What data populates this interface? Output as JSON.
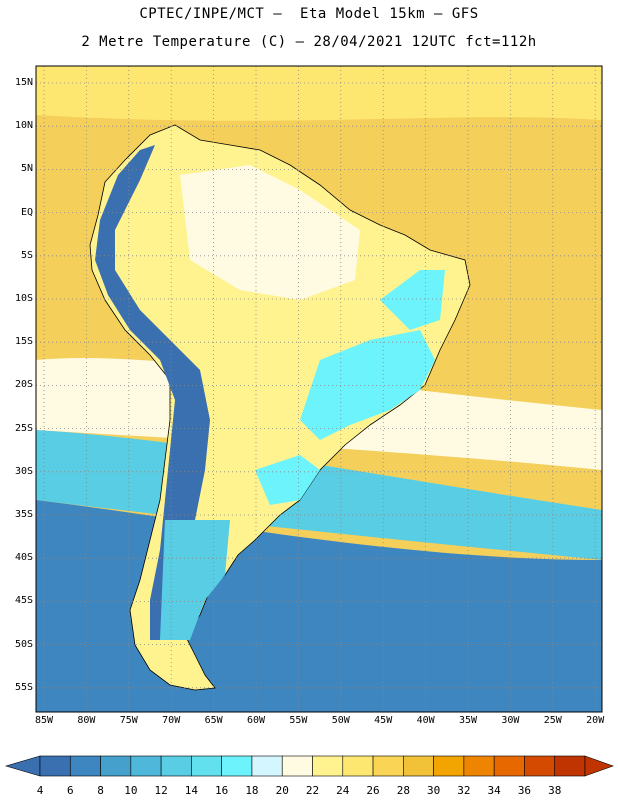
{
  "title": {
    "line1": "CPTEC/INPE/MCT –  Eta Model 15km – GFS",
    "line2": "2 Metre Temperature (C) – 28/04/2021 12UTC fct=112h"
  },
  "lat_labels": [
    "15N",
    "10N",
    "5N",
    "EQ",
    "5S",
    "10S",
    "15S",
    "20S",
    "25S",
    "30S",
    "35S",
    "40S",
    "45S",
    "50S",
    "55S"
  ],
  "lon_labels": [
    "85W",
    "80W",
    "75W",
    "70W",
    "65W",
    "60W",
    "55W",
    "50W",
    "45W",
    "40W",
    "35W",
    "30W",
    "25W",
    "20W"
  ],
  "colorbar": {
    "labels": [
      "4",
      "6",
      "8",
      "10",
      "12",
      "14",
      "16",
      "18",
      "20",
      "22",
      "24",
      "26",
      "28",
      "30",
      "32",
      "34",
      "36",
      "38"
    ],
    "colors": [
      "#3a6fb0",
      "#3e86bf",
      "#45a0cc",
      "#4fb7d9",
      "#58cde4",
      "#62e0ee",
      "#6cf3fb",
      "#d4f6ff",
      "#fffae2",
      "#fff38f",
      "#fee771",
      "#f9d455",
      "#f1c238",
      "#f2a400",
      "#ee8500",
      "#e86800",
      "#d44a00",
      "#bf3400"
    ]
  },
  "map_colors": {
    "ocean_warm": "#f4cf5a",
    "ocean_mid": "#fee771",
    "ocean_cool": "#fffae2",
    "ocean_cold": "#58cde4",
    "ocean_colder": "#3e86bf",
    "andes": "#3a6fb0",
    "land_warm": "#fff38f",
    "land_mild": "#fffae2",
    "highland": "#6cf3fb"
  }
}
